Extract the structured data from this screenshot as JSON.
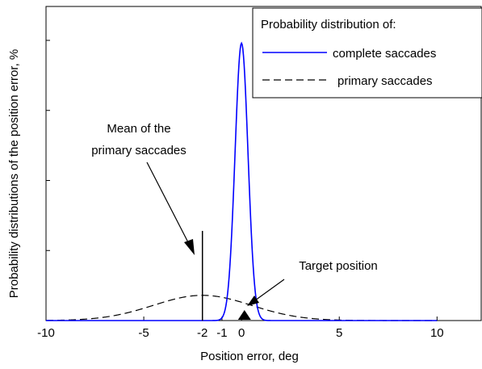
{
  "chart_data": {
    "type": "line",
    "title": "",
    "xlabel": "Position error, deg",
    "ylabel": "Probability distributions of the position error, %",
    "xlim": [
      -10,
      12.3
    ],
    "ylim": [
      0,
      1
    ],
    "x_ticks": [
      -10,
      -5,
      -2,
      -1,
      0,
      5,
      10
    ],
    "x_tick_labels": [
      "-10",
      "-5",
      "-2",
      "-1",
      "0",
      "5",
      "10"
    ],
    "y_tick_labels_shown": false,
    "legend": {
      "position": "top-right",
      "title": "Probability distribution of:",
      "entries": [
        "complete saccades",
        "primary saccades"
      ]
    },
    "series": [
      {
        "name": "complete saccades",
        "style": "solid",
        "color": "#0000ff",
        "distribution": "gaussian",
        "mean": 0,
        "sd": 0.33,
        "peak": 0.99
      },
      {
        "name": "primary saccades",
        "style": "dashed",
        "color": "#000000",
        "distribution": "gaussian",
        "mean": -2,
        "sd": 2.5,
        "peak": 0.09
      }
    ],
    "annotations": [
      {
        "id": "mean",
        "text_lines": [
          "Mean of the",
          "primary saccades"
        ],
        "x": -2,
        "marker": "vertical-line",
        "marker_top": 0.32
      },
      {
        "id": "target",
        "text_lines": [
          "Target position"
        ],
        "x": 0.15,
        "marker": "triangle"
      }
    ]
  }
}
